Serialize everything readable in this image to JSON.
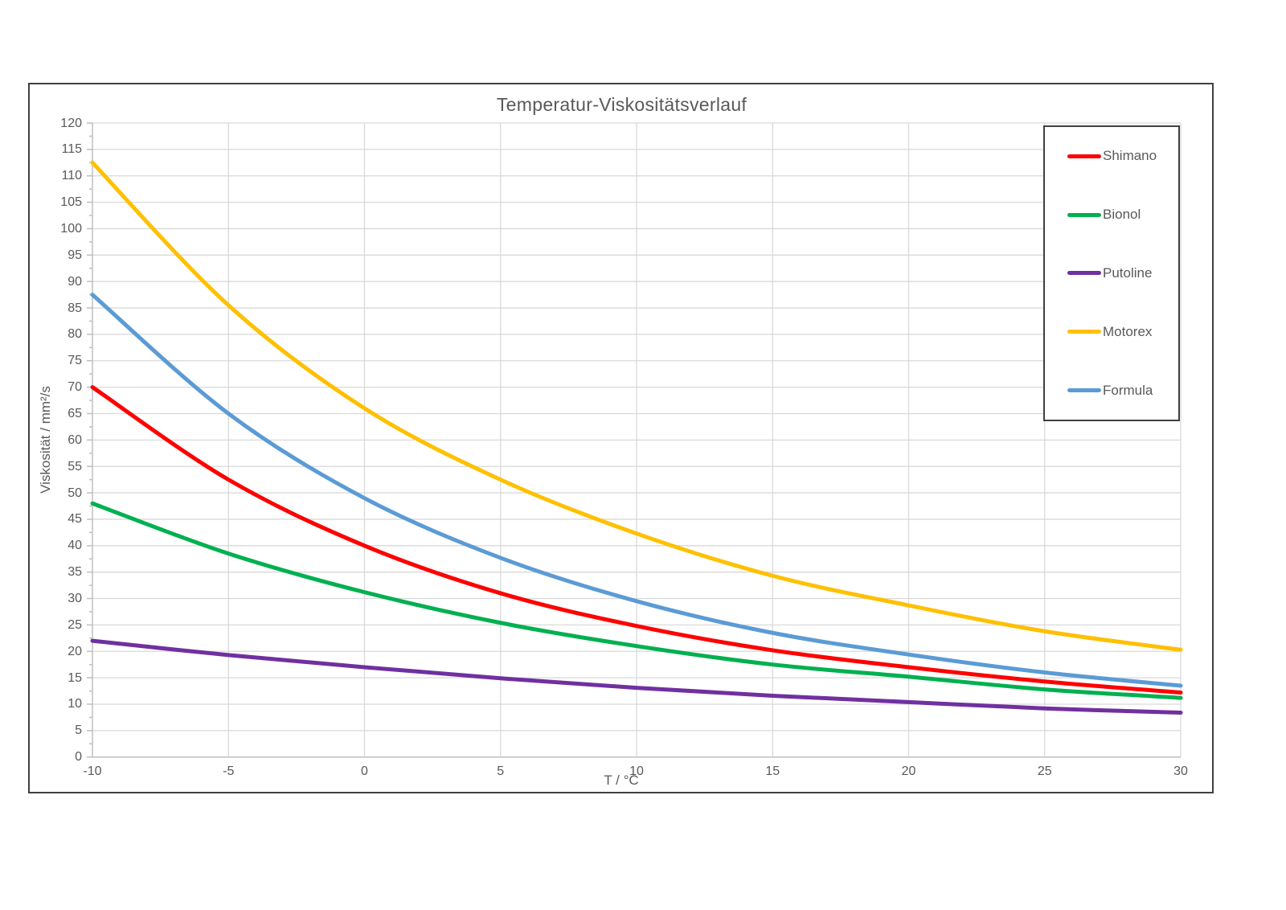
{
  "chart_data": {
    "type": "line",
    "title": "Temperatur-Viskositätsverlauf",
    "xlabel": "T / °C",
    "ylabel": "Viskosität / mm²/s",
    "xlim": [
      -10,
      30
    ],
    "ylim": [
      0,
      120
    ],
    "grid": true,
    "legend_position": "right-inside",
    "x_ticks": [
      -10,
      -5,
      0,
      5,
      10,
      15,
      20,
      25,
      30
    ],
    "x_tick_labels": [
      "-10",
      "-5",
      "0",
      "5",
      "10",
      "15",
      "20",
      "25",
      "30"
    ],
    "y_tick_step": 5,
    "y_minor_tick_step": 2.5,
    "y_tick_labels": [
      "0",
      "5",
      "10",
      "15",
      "20",
      "25",
      "30",
      "35",
      "40",
      "45",
      "50",
      "55",
      "60",
      "65",
      "70",
      "75",
      "80",
      "85",
      "90",
      "95",
      "100",
      "105",
      "110",
      "115",
      "120"
    ],
    "x": [
      -10,
      -5,
      0,
      5,
      10,
      15,
      20,
      25,
      30
    ],
    "series": [
      {
        "name": "Shimano",
        "color": "#FF0000",
        "values": [
          70.0,
          52.5,
          40.0,
          31.0,
          24.8,
          20.2,
          17.0,
          14.3,
          12.2
        ]
      },
      {
        "name": "Bionol",
        "color": "#00B050",
        "values": [
          48.0,
          38.5,
          31.2,
          25.4,
          21.0,
          17.5,
          15.2,
          12.8,
          11.2
        ]
      },
      {
        "name": "Putoline",
        "color": "#7030A0",
        "values": [
          22.0,
          19.3,
          17.0,
          14.9,
          13.1,
          11.6,
          10.4,
          9.2,
          8.4
        ]
      },
      {
        "name": "Motorex",
        "color": "#FFC000",
        "values": [
          112.5,
          85.5,
          66.0,
          52.5,
          42.3,
          34.3,
          28.7,
          23.8,
          20.3
        ]
      },
      {
        "name": "Formula",
        "color": "#5B9BD5",
        "values": [
          87.5,
          65.0,
          49.0,
          37.7,
          29.5,
          23.5,
          19.4,
          16.0,
          13.5
        ]
      }
    ]
  },
  "colors": {
    "text": "#595959",
    "gridline": "#D9D9D9",
    "axis": "#BFBFBF",
    "frame_border": "#404040",
    "background": "#FFFFFF"
  }
}
